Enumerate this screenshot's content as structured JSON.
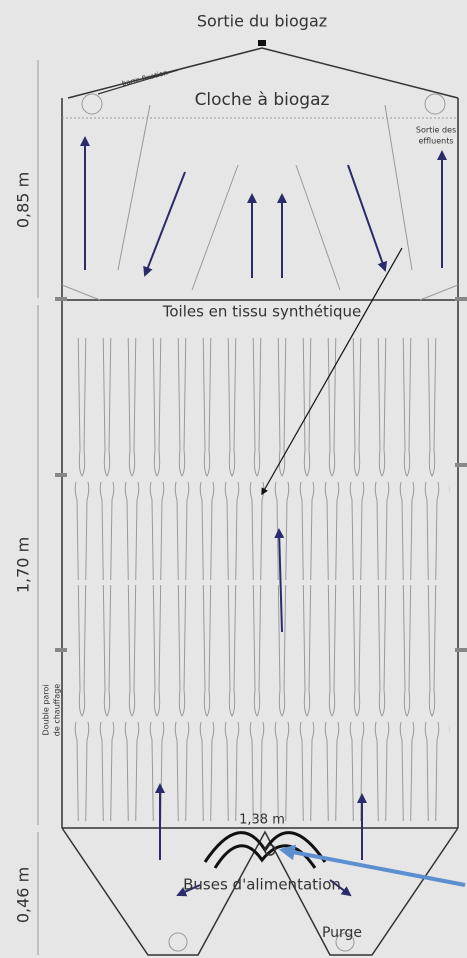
{
  "labels": {
    "gas_outlet": "Sortie du biogaz",
    "fixing_bar": "barre fixation",
    "gas_bell": "Cloche à biogaz",
    "effluent_outlet_1": "Sortie des",
    "effluent_outlet_2": "effluents",
    "height_top": "0,85 m",
    "fabric": "Toiles en tissu synthétique",
    "height_middle": "1,70 m",
    "double_wall_1": "Double paroi",
    "double_wall_2": "de chauffage",
    "width_bottom": "1,38 m",
    "nozzles": "Buses d'alimentation",
    "purge": "Purge",
    "height_bottom": "0,46 m"
  }
}
